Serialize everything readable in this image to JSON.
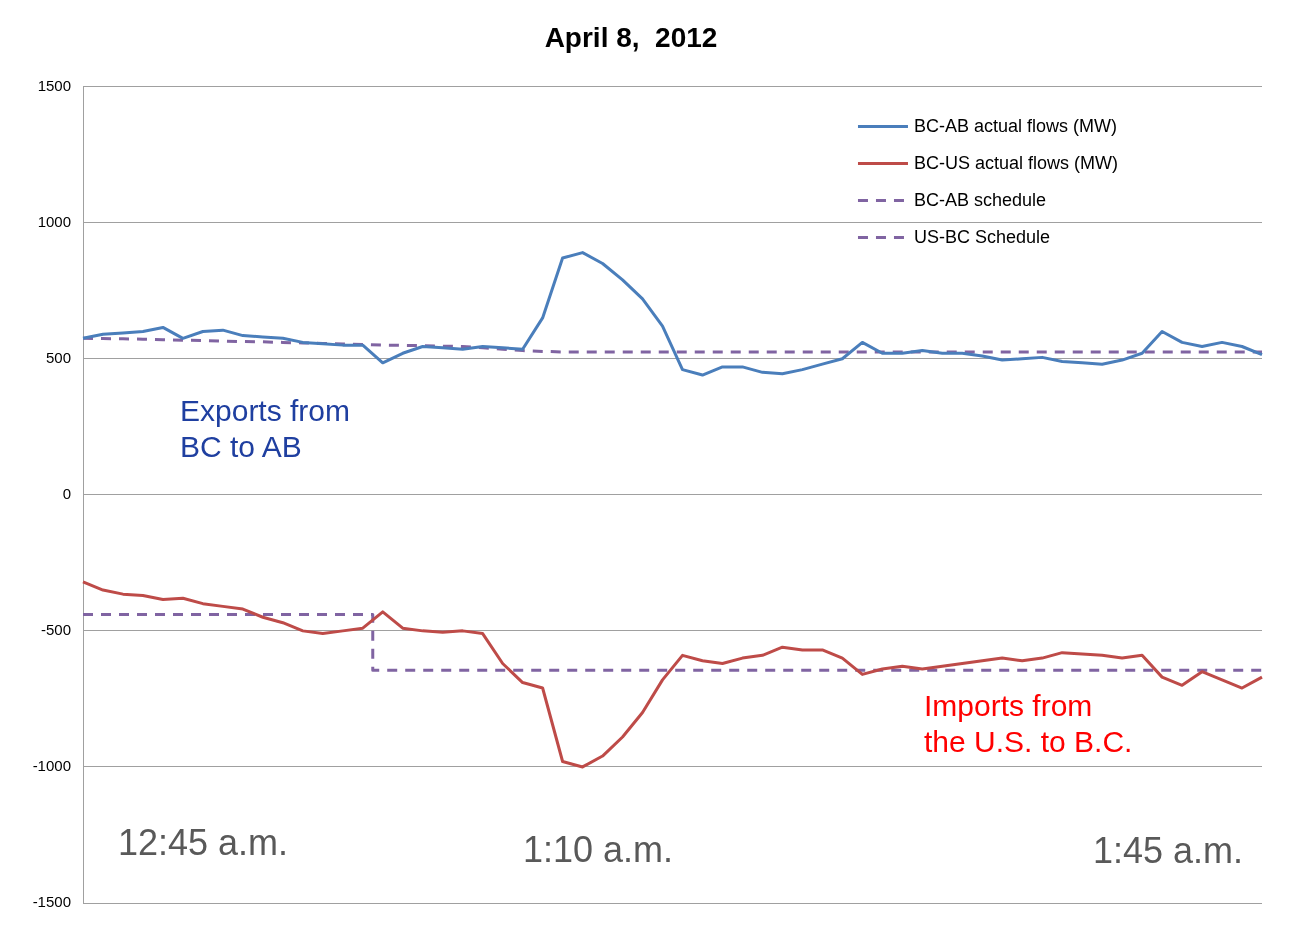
{
  "chart_data": {
    "type": "line",
    "title": "April 8,  2012",
    "categories": [
      null,
      null,
      null,
      null,
      null,
      null,
      null,
      null,
      null,
      null,
      null,
      null,
      null,
      null,
      null,
      null,
      null,
      null,
      null,
      null,
      null,
      null,
      null,
      null,
      null,
      null,
      null,
      null,
      null,
      null,
      null,
      null,
      null,
      null,
      null,
      null,
      null,
      null,
      null,
      null,
      null,
      null,
      null,
      null,
      null,
      null,
      null,
      null,
      null,
      null,
      null,
      null,
      null,
      null,
      null,
      null,
      null,
      null,
      null,
      null
    ],
    "series": [
      {
        "name": "BC-AB actual flows (MW)",
        "color": "#4a7ebb",
        "values": [
          575,
          590,
          595,
          600,
          615,
          575,
          600,
          605,
          585,
          580,
          575,
          560,
          555,
          550,
          550,
          485,
          520,
          545,
          540,
          535,
          545,
          540,
          535,
          650,
          870,
          890,
          850,
          790,
          720,
          620,
          460,
          440,
          470,
          470,
          450,
          445,
          460,
          480,
          500,
          560,
          520,
          520,
          530,
          520,
          520,
          510,
          495,
          500,
          505,
          490,
          485,
          480,
          495,
          520,
          600,
          560,
          545,
          560,
          545,
          515
        ]
      },
      {
        "name": "BC-US actual flows (MW)",
        "color": "#be4b48",
        "values": [
          -320,
          -350,
          -365,
          -370,
          -385,
          -380,
          -400,
          -410,
          -420,
          -450,
          -470,
          -500,
          -510,
          -500,
          -490,
          -430,
          -490,
          -500,
          -505,
          -500,
          -510,
          -620,
          -690,
          -710,
          -980,
          -1000,
          -960,
          -890,
          -800,
          -680,
          -590,
          -610,
          -620,
          -600,
          -590,
          -560,
          -570,
          -570,
          -600,
          -660,
          -640,
          -630,
          -640,
          -630,
          -620,
          -610,
          -600,
          -610,
          -600,
          -580,
          -585,
          -590,
          -600,
          -590,
          -670,
          -700,
          -650,
          -680,
          -710,
          -670
        ]
      },
      {
        "name": "BC-AB schedule",
        "color": "#8064a2",
        "line_style": "dashed",
        "values": [
          575,
          574,
          573,
          572,
          570,
          568,
          567,
          565,
          563,
          562,
          560,
          558,
          556,
          554,
          552,
          550,
          549,
          548,
          546,
          545,
          540,
          535,
          530,
          527,
          525,
          525,
          525,
          525,
          525,
          525,
          525,
          525,
          525,
          525,
          525,
          525,
          525,
          525,
          525,
          525,
          525,
          525,
          525,
          525,
          525,
          525,
          525,
          525,
          525,
          525,
          525,
          525,
          525,
          525,
          525,
          525,
          525,
          525,
          525,
          525
        ]
      },
      {
        "name": "US-BC Schedule",
        "type": "step",
        "color": "#8064a2",
        "line_style": "dashed",
        "values": [
          -440,
          -440,
          -440,
          -440,
          -440,
          -440,
          -440,
          -440,
          -440,
          -440,
          -440,
          -440,
          -440,
          -440,
          -440,
          -645,
          -645,
          -645,
          -645,
          -645,
          -645,
          -645,
          -645,
          -645,
          -645,
          -645,
          -645,
          -645,
          -645,
          -645,
          -645,
          -645,
          -645,
          -645,
          -645,
          -645,
          -645,
          -645,
          -645,
          -645,
          -645,
          -645,
          -645,
          -645,
          -645,
          -645,
          -645,
          -645,
          -645,
          -645,
          -645,
          -645,
          -645,
          -645,
          -645,
          -645,
          -645,
          -645,
          -645,
          -645
        ]
      }
    ],
    "ylim": [
      -1500,
      1500
    ],
    "yticks": [
      -1500,
      -1000,
      -500,
      0,
      500,
      1000,
      1500
    ],
    "grid": "y",
    "legend": "top right",
    "marker": "none",
    "tick_labels": "y",
    "annotations": [
      "Exports from\nBC to AB",
      "Imports from\nthe U.S. to B.C.",
      "12:45 a.m.",
      "1:10 a.m.",
      "1:45 a.m."
    ]
  }
}
